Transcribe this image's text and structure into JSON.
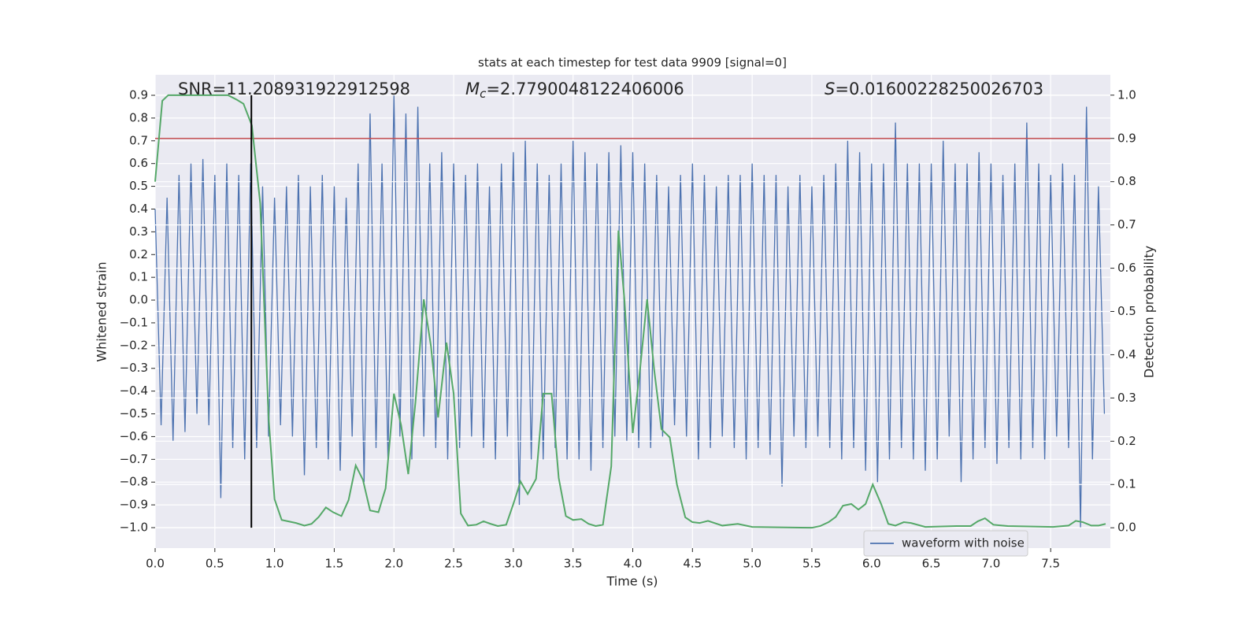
{
  "chart_data": {
    "type": "line",
    "title": "stats at each timestep for test data 9909 [signal=0]",
    "xlabel": "Time (s)",
    "ylabel": "Whitened strain",
    "y2label": "Detection probability",
    "annotations": [
      {
        "text": "SNR=11.208931922912598"
      },
      {
        "symbol": "M",
        "subscript": "c",
        "text": "=2.7790048122406006"
      },
      {
        "symbol": "S",
        "text": "=0.01600228250026703"
      }
    ],
    "xlim": [
      0,
      8.0
    ],
    "ylim": [
      -1.09,
      0.99
    ],
    "y2lim": [
      -0.047,
      1.047
    ],
    "xticks": [
      {
        "value": 0,
        "label": "0.0"
      },
      0.5,
      {
        "value": 1,
        "label": "1.0"
      },
      1.5,
      {
        "value": 2,
        "label": "2.0"
      },
      2.5,
      {
        "value": 3,
        "label": "3.0"
      },
      3.5,
      {
        "value": 4,
        "label": "4.0"
      },
      4.5,
      {
        "value": 5,
        "label": "5.0"
      },
      5.5,
      {
        "value": 6,
        "label": "6.0"
      },
      6.5,
      {
        "value": 7,
        "label": "7.0"
      },
      7.5
    ],
    "yticks": [
      {
        "value": -1.0,
        "label": "−1.0"
      },
      {
        "value": -0.9,
        "label": "−0.9"
      },
      {
        "value": -0.8,
        "label": "−0.8"
      },
      {
        "value": -0.7,
        "label": "−0.7"
      },
      {
        "value": -0.6,
        "label": "−0.6"
      },
      {
        "value": -0.5,
        "label": "−0.5"
      },
      {
        "value": -0.4,
        "label": "−0.4"
      },
      {
        "value": -0.3,
        "label": "−0.3"
      },
      {
        "value": -0.2,
        "label": "−0.2"
      },
      {
        "value": -0.1,
        "label": "−0.1"
      },
      {
        "value": 0,
        "label": "0.0"
      },
      0.1,
      0.2,
      0.3,
      0.4,
      0.5,
      0.6,
      0.7,
      0.8,
      0.9
    ],
    "y2ticks": [
      {
        "value": 0,
        "label": "0.0"
      },
      0.1,
      0.2,
      0.3,
      0.4,
      0.5,
      0.6,
      0.7,
      0.8,
      0.9,
      {
        "value": 1,
        "label": "1.0"
      }
    ],
    "grid": true,
    "legend": "lower right",
    "series": [
      {
        "name": "waveform with noise",
        "color": "#4c72b0",
        "x": [
          0,
          0.05,
          0.1,
          0.15,
          0.2,
          0.25,
          0.3,
          0.35,
          0.4,
          0.45,
          0.5,
          0.55,
          0.6,
          0.65,
          0.7,
          0.75,
          0.8,
          0.85,
          0.9,
          0.95,
          1,
          1.05,
          1.1,
          1.15,
          1.2,
          1.25,
          1.3,
          1.35,
          1.4,
          1.45,
          1.5,
          1.55,
          1.6,
          1.65,
          1.7,
          1.75,
          1.8,
          1.85,
          1.9,
          1.95,
          2,
          2.05,
          2.1,
          2.15,
          2.2,
          2.25,
          2.3,
          2.35,
          2.4,
          2.45,
          2.5,
          2.55,
          2.6,
          2.65,
          2.7,
          2.75,
          2.8,
          2.85,
          2.9,
          2.95,
          3,
          3.05,
          3.1,
          3.15,
          3.2,
          3.25,
          3.3,
          3.35,
          3.4,
          3.45,
          3.5,
          3.55,
          3.6,
          3.65,
          3.7,
          3.75,
          3.8,
          3.85,
          3.9,
          3.95,
          4,
          4.05,
          4.1,
          4.15,
          4.2,
          4.25,
          4.3,
          4.35,
          4.4,
          4.45,
          4.5,
          4.55,
          4.6,
          4.65,
          4.7,
          4.75,
          4.8,
          4.85,
          4.9,
          4.95,
          5,
          5.05,
          5.1,
          5.15,
          5.2,
          5.25,
          5.3,
          5.35,
          5.4,
          5.45,
          5.5,
          5.55,
          5.6,
          5.65,
          5.7,
          5.75,
          5.8,
          5.85,
          5.9,
          5.95,
          6,
          6.05,
          6.1,
          6.15,
          6.2,
          6.25,
          6.3,
          6.35,
          6.4,
          6.45,
          6.5,
          6.55,
          6.6,
          6.65,
          6.7,
          6.75,
          6.8,
          6.85,
          6.9,
          6.95,
          7,
          7.05,
          7.1,
          7.15,
          7.2,
          7.25,
          7.3,
          7.35,
          7.4,
          7.45,
          7.5,
          7.55,
          7.6,
          7.65,
          7.7,
          7.75,
          7.8,
          7.85,
          7.9,
          7.95
        ],
        "values": [
          0.4,
          -0.55,
          0.45,
          -0.62,
          0.55,
          -0.58,
          0.6,
          -0.5,
          0.62,
          -0.55,
          0.55,
          -0.87,
          0.6,
          -0.65,
          0.55,
          -0.7,
          0.6,
          -0.65,
          0.5,
          -0.6,
          0.45,
          -0.55,
          0.5,
          -0.6,
          0.55,
          -0.77,
          0.5,
          -0.65,
          0.55,
          -0.7,
          0.5,
          -0.75,
          0.45,
          -0.6,
          0.6,
          -0.8,
          0.82,
          -0.65,
          0.6,
          -0.7,
          0.9,
          -0.6,
          0.82,
          -0.7,
          0.85,
          -0.6,
          0.6,
          -0.65,
          0.65,
          -0.7,
          0.6,
          -0.65,
          0.55,
          -0.6,
          0.6,
          -0.65,
          0.5,
          -0.7,
          0.6,
          -0.6,
          0.65,
          -0.9,
          0.7,
          -0.7,
          0.6,
          -0.7,
          0.55,
          -0.65,
          0.6,
          -0.7,
          0.7,
          -0.7,
          0.65,
          -0.75,
          0.6,
          -0.65,
          0.65,
          -0.6,
          0.68,
          -0.62,
          0.65,
          -0.65,
          0.6,
          -0.65,
          0.55,
          -0.6,
          0.5,
          -0.55,
          0.55,
          -0.6,
          0.6,
          -0.7,
          0.55,
          -0.65,
          0.5,
          -0.6,
          0.55,
          -0.65,
          0.55,
          -0.7,
          0.6,
          -0.65,
          0.55,
          -0.68,
          0.55,
          -0.82,
          0.5,
          -0.6,
          0.55,
          -0.65,
          0.5,
          -0.6,
          0.55,
          -0.65,
          0.6,
          -0.7,
          0.7,
          -0.65,
          0.65,
          -0.75,
          0.6,
          -0.8,
          0.6,
          -0.7,
          0.78,
          -0.65,
          0.6,
          -0.7,
          0.6,
          -0.75,
          0.6,
          -0.7,
          0.7,
          -0.6,
          0.6,
          -0.8,
          0.6,
          -0.7,
          0.65,
          -0.65,
          0.6,
          -0.72,
          0.55,
          -0.65,
          0.6,
          -0.7,
          0.78,
          -0.65,
          0.6,
          -0.7,
          0.55,
          -0.6,
          0.6,
          -0.65,
          0.55,
          -1.0,
          0.85,
          -0.7,
          0.5,
          -0.5
        ]
      },
      {
        "color": "#55a868",
        "axis": "y2",
        "x": [
          0,
          0.06,
          0.11,
          0.61,
          0.68,
          0.74,
          0.81,
          0.88,
          0.95,
          1.0,
          1.06,
          1.18,
          1.25,
          1.31,
          1.37,
          1.43,
          1.49,
          1.56,
          1.62,
          1.68,
          1.74,
          1.8,
          1.87,
          1.93,
          2.0,
          2.06,
          2.12,
          2.18,
          2.25,
          2.31,
          2.37,
          2.44,
          2.5,
          2.56,
          2.62,
          2.69,
          2.75,
          2.81,
          2.87,
          2.94,
          3.0,
          3.06,
          3.12,
          3.19,
          3.25,
          3.32,
          3.38,
          3.44,
          3.5,
          3.57,
          3.63,
          3.69,
          3.75,
          3.82,
          3.88,
          3.93,
          4.0,
          4.06,
          4.12,
          4.18,
          4.24,
          4.31,
          4.37,
          4.44,
          4.5,
          4.56,
          4.63,
          4.75,
          4.88,
          5.0,
          5.5,
          5.57,
          5.64,
          5.7,
          5.76,
          5.83,
          5.89,
          5.95,
          6.01,
          6.08,
          6.14,
          6.2,
          6.27,
          6.33,
          6.45,
          6.71,
          6.83,
          6.89,
          6.95,
          7.02,
          7.14,
          7.52,
          7.65,
          7.71,
          7.77,
          7.84,
          7.9,
          7.96
        ],
        "values": [
          0.8,
          0.987,
          1.0,
          1.0,
          0.99,
          0.98,
          0.93,
          0.75,
          0.255,
          0.066,
          0.018,
          0.011,
          0.005,
          0.009,
          0.025,
          0.047,
          0.036,
          0.027,
          0.064,
          0.144,
          0.111,
          0.04,
          0.036,
          0.091,
          0.31,
          0.237,
          0.124,
          0.29,
          0.528,
          0.42,
          0.255,
          0.428,
          0.31,
          0.033,
          0.005,
          0.007,
          0.015,
          0.009,
          0.004,
          0.007,
          0.055,
          0.107,
          0.078,
          0.113,
          0.31,
          0.31,
          0.115,
          0.027,
          0.018,
          0.02,
          0.009,
          0.004,
          0.007,
          0.142,
          0.687,
          0.528,
          0.219,
          0.364,
          0.528,
          0.364,
          0.228,
          0.209,
          0.1,
          0.024,
          0.013,
          0.011,
          0.016,
          0.005,
          0.009,
          0.002,
          0,
          0.004,
          0.013,
          0.025,
          0.051,
          0.055,
          0.042,
          0.055,
          0.1,
          0.055,
          0.009,
          0.005,
          0.013,
          0.011,
          0.002,
          0.004,
          0.004,
          0.015,
          0.022,
          0.007,
          0.004,
          0.002,
          0.005,
          0.016,
          0.013,
          0.005,
          0.005,
          0.009
        ]
      }
    ],
    "hlines": [
      {
        "value": 0.9,
        "axis": "y2",
        "color": "#c44e52"
      }
    ],
    "vlines": [
      {
        "x": 0.806,
        "ymin": 0,
        "ymax": 1,
        "axis": "y2",
        "color": "#000000"
      }
    ]
  }
}
